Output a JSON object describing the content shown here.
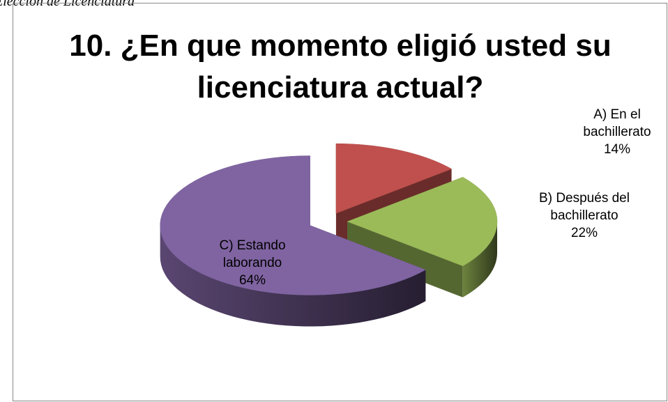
{
  "caption": "Elección de Licenciatura",
  "chart_data": {
    "type": "pie3d",
    "title": "10. ¿En que momento eligió usted su licenciatura actual?",
    "categories": [
      "A) En el bachillerato",
      "B) Después del bachillerato",
      "C) Estando laborando"
    ],
    "values": [
      14,
      22,
      64
    ],
    "value_labels": [
      "14%",
      "22%",
      "64%"
    ],
    "colors": [
      "#c0504d",
      "#9bbb59",
      "#8064a2"
    ]
  }
}
